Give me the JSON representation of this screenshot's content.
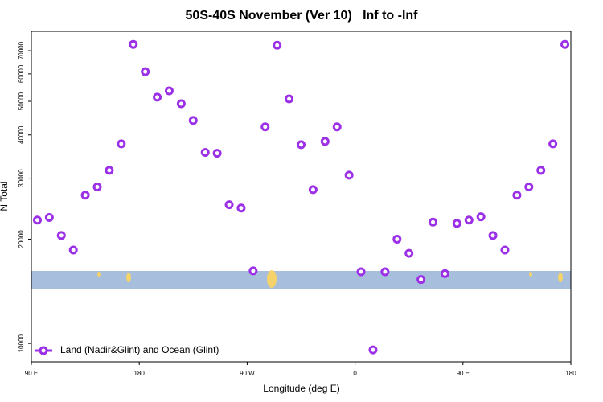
{
  "chart_data": {
    "type": "scatter",
    "title": "50S-40S November (Ver 10)   Inf to -Inf",
    "x_label": "Longitude (deg E)",
    "y_label": "N Total",
    "log_y": true,
    "legend_position": "bottomleft",
    "xlim": [
      90,
      540
    ],
    "ylim": [
      8850,
      79600
    ],
    "xticks": [
      {
        "value": 90,
        "label": "90 E"
      },
      180,
      {
        "value": 270,
        "label": "90 W"
      },
      {
        "value": 360,
        "label": "0"
      },
      {
        "value": 450,
        "label": "90 E"
      },
      {
        "value": 540,
        "label": "180"
      }
    ],
    "yticks": [
      10000,
      20000,
      30000,
      40000,
      50000,
      60000,
      70000
    ],
    "series": [
      {
        "name": "Land (Nadir&Glint) and Ocean (Glint)",
        "color": "#9b30e6",
        "x": [
          95,
          105,
          115,
          125,
          135,
          145,
          155,
          165,
          175,
          185,
          195,
          205,
          215,
          225,
          235,
          245,
          255,
          265,
          275,
          285,
          295,
          305,
          315,
          325,
          335,
          345,
          355,
          365,
          375,
          385,
          395,
          405,
          415,
          425,
          435,
          445,
          455,
          465,
          475,
          485,
          495,
          505,
          515,
          525,
          535
        ],
        "values": [
          22700,
          23100,
          20500,
          18600,
          26800,
          28300,
          31600,
          37700,
          73000,
          60900,
          51400,
          53600,
          49200,
          44000,
          35600,
          35400,
          25150,
          24600,
          16200,
          42200,
          72600,
          50800,
          37500,
          27800,
          38300,
          42200,
          30600,
          16100,
          9580,
          16100,
          20000,
          18200,
          15300,
          22400,
          15900,
          22200,
          22700,
          23200,
          20500,
          18600,
          26800,
          28300,
          31600,
          37700,
          73000
        ]
      }
    ]
  }
}
